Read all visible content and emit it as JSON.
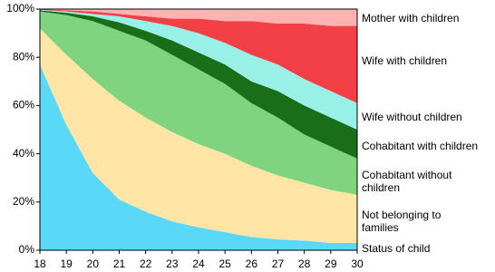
{
  "chart_data": {
    "type": "stacked-area",
    "x": [
      18,
      19,
      20,
      21,
      22,
      23,
      24,
      25,
      26,
      27,
      28,
      29,
      30
    ],
    "xlim": [
      18,
      30
    ],
    "xticks": [
      18,
      19,
      20,
      21,
      22,
      23,
      24,
      25,
      26,
      27,
      28,
      29,
      30
    ],
    "ylim": [
      0,
      100
    ],
    "yticks": [
      {
        "value": 0,
        "label": "0%"
      },
      {
        "value": 20,
        "label": "20%"
      },
      {
        "value": 40,
        "label": "40%"
      },
      {
        "value": 60,
        "label": "60%"
      },
      {
        "value": 80,
        "label": "80%"
      },
      {
        "value": 100,
        "label": "100%"
      }
    ],
    "series": [
      {
        "name": "Status of child",
        "color": "#5ad8f8",
        "values": [
          77,
          52,
          32,
          21,
          16,
          12,
          9.5,
          7.5,
          5.5,
          4.5,
          4,
          3,
          3
        ]
      },
      {
        "name": "Not belonging to families",
        "color": "#ffe6a6",
        "values": [
          15,
          29,
          39,
          41,
          39,
          37,
          34.5,
          32.5,
          29.5,
          26.5,
          24,
          22,
          20
        ]
      },
      {
        "name": "Cohabitant without children",
        "color": "#80d480",
        "values": [
          7,
          16.5,
          24,
          29,
          32,
          32,
          31,
          29,
          26,
          24,
          20,
          18,
          15
        ]
      },
      {
        "name": "Cohabitant with children",
        "color": "#1a6e1a",
        "values": [
          0.5,
          1,
          2,
          3.5,
          4,
          6,
          7,
          8,
          9,
          11,
          12,
          12,
          12
        ]
      },
      {
        "name": "Wife without children",
        "color": "#98f0e6",
        "values": [
          0.2,
          0.5,
          1,
          2.5,
          4,
          6,
          8,
          9,
          11,
          11,
          11,
          11,
          11
        ]
      },
      {
        "name": "Wife with children",
        "color": "#f24046",
        "values": [
          0.3,
          0.5,
          1,
          1,
          2,
          3,
          6,
          9,
          14,
          17,
          23,
          27,
          32
        ]
      },
      {
        "name": "Mother with children",
        "color": "#ffb2b2",
        "values": [
          0,
          0.5,
          1,
          2,
          3,
          4,
          4,
          5,
          5,
          6,
          6,
          7,
          7
        ]
      }
    ]
  }
}
